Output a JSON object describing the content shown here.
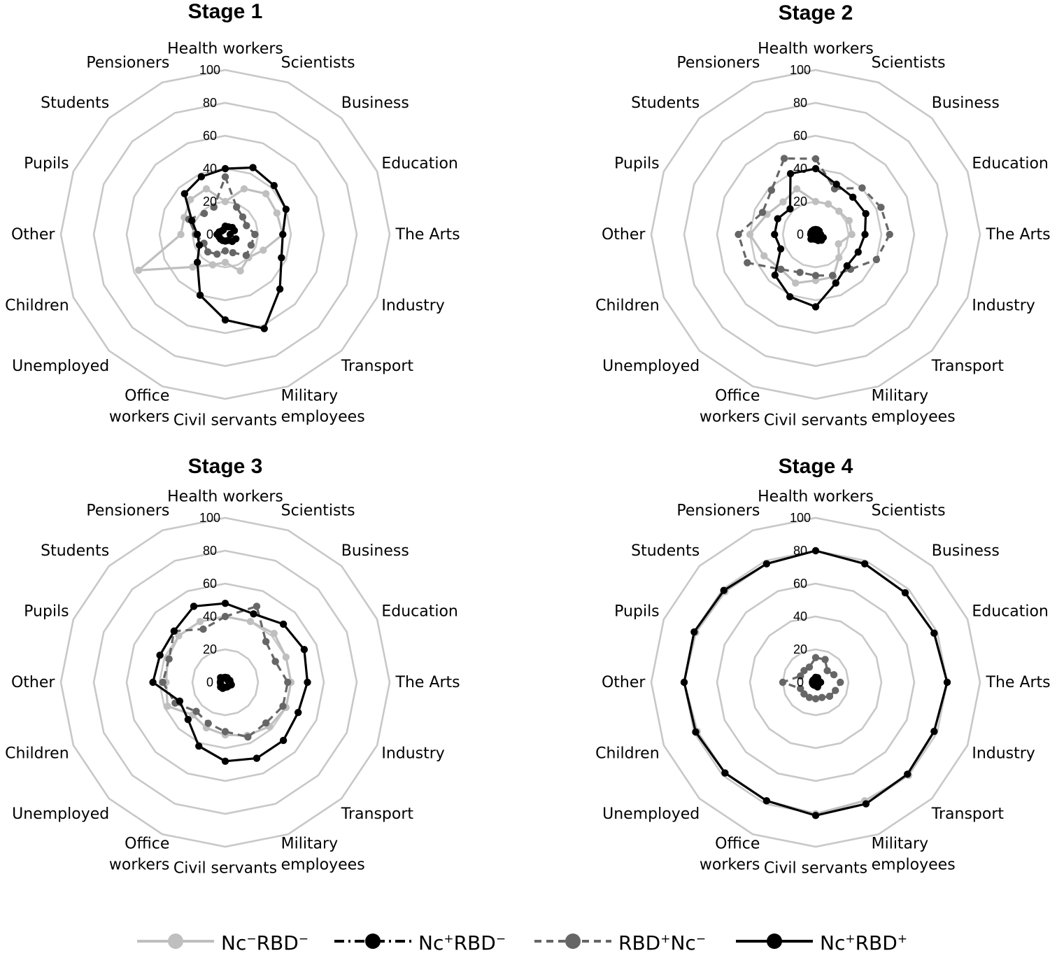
{
  "chart_data": {
    "type": "radar",
    "categories": [
      "Health workers",
      "Scientists",
      "Business",
      "Education",
      "The Arts",
      "Industry",
      "Transport",
      "Military employees",
      "Civil servants",
      "Office workers",
      "Unemployed",
      "Children",
      "Other",
      "Pupils",
      "Students",
      "Pensioners"
    ],
    "category_label_lines": [
      [
        "Health workers"
      ],
      [
        "Scientists"
      ],
      [
        "Business"
      ],
      [
        "Education"
      ],
      [
        "The Arts"
      ],
      [
        "Industry"
      ],
      [
        "Transport"
      ],
      [
        "Military",
        "employees"
      ],
      [
        "Civil servants"
      ],
      [
        "Office",
        "workers"
      ],
      [
        "Unemployed"
      ],
      [
        "Children"
      ],
      [
        "Other"
      ],
      [
        "Pupils"
      ],
      [
        "Students"
      ],
      [
        "Pensioners"
      ]
    ],
    "radial_ticks": [
      "0",
      "20",
      "40",
      "60",
      "80",
      "100"
    ],
    "rlim": [
      0,
      100
    ],
    "legend_position": "bottom",
    "series_styles": [
      {
        "key": "ncneg_rbdneg",
        "color": "#bfbfbf",
        "dash": "solid"
      },
      {
        "key": "ncpos_rbdneg",
        "color": "#000000",
        "dash": "dashdot"
      },
      {
        "key": "rbdpos_ncneg",
        "color": "#666666",
        "dash": "dashed"
      },
      {
        "key": "ncpos_rbdpos",
        "color": "#000000",
        "dash": "solid"
      }
    ],
    "legend": [
      {
        "main1": "Nc",
        "sup1": "−",
        "main2": "RBD",
        "sup2": "−"
      },
      {
        "main1": "Nc",
        "sup1": "+",
        "main2": "RBD",
        "sup2": "−"
      },
      {
        "main1": "RBD",
        "sup1": "+",
        "main2": "Nc",
        "sup2": "−"
      },
      {
        "main1": "Nc",
        "sup1": "+",
        "main2": "RBD",
        "sup2": "+"
      }
    ],
    "panels": [
      {
        "title": "Stage 1",
        "series": [
          {
            "values": [
              20,
              30,
              35,
              34,
              35,
              25,
              20,
              24,
              17,
              20,
              28,
              57,
              27,
              27,
              30,
              30
            ]
          },
          {
            "values": [
              5,
              5,
              6,
              6,
              3,
              7,
              6,
              4,
              4,
              4,
              4,
              4,
              5,
              4,
              3,
              3
            ]
          },
          {
            "values": [
              35,
              18,
              15,
              14,
              18,
              17,
              18,
              12,
              10,
              13,
              15,
              14,
              18,
              24,
              18,
              18
            ]
          },
          {
            "values": [
              40,
              44,
              42,
              40,
              35,
              37,
              47,
              62,
              52,
              40,
              24,
              17,
              17,
              22,
              35,
              38
            ]
          }
        ]
      },
      {
        "title": "Stage 2",
        "series": [
          {
            "values": [
              20,
              20,
              20,
              22,
              22,
              15,
              20,
              28,
              28,
              32,
              30,
              34,
              40,
              32,
              28,
              30
            ]
          },
          {
            "values": [
              3,
              3,
              3,
              2,
              3,
              5,
              5,
              4,
              3,
              3,
              4,
              2,
              3,
              3,
              3,
              3
            ]
          },
          {
            "values": [
              46,
              30,
              40,
              43,
              45,
              40,
              30,
              27,
              25,
              25,
              30,
              45,
              47,
              35,
              38,
              50
            ]
          },
          {
            "values": [
              40,
              33,
              32,
              33,
              30,
              28,
              27,
              32,
              44,
              41,
              35,
              23,
              25,
              25,
              22,
              40
            ]
          }
        ]
      },
      {
        "title": "Stage 3",
        "series": [
          {
            "values": [
              40,
              40,
              42,
              40,
              40,
              40,
              38,
              35,
              32,
              30,
              28,
              38,
              36,
              38,
              40,
              40
            ]
          },
          {
            "values": [
              3,
              3,
              2,
              3,
              3,
              4,
              3,
              3,
              3,
              4,
              4,
              3,
              3,
              3,
              4,
              3
            ]
          },
          {
            "values": [
              40,
              50,
              35,
              33,
              38,
              38,
              35,
              36,
              30,
              27,
              25,
              33,
              38,
              37,
              44,
              35
            ]
          },
          {
            "values": [
              48,
              45,
              50,
              52,
              50,
              48,
              50,
              50,
              48,
              42,
              32,
              30,
              44,
              43,
              44,
              50
            ]
          }
        ]
      },
      {
        "title": "Stage 4",
        "series": [
          {
            "values": [
              80,
              78,
              77,
              78,
              80,
              78,
              80,
              78,
              80,
              78,
              78,
              78,
              80,
              79,
              78,
              78
            ]
          },
          {
            "values": [
              3,
              3,
              2,
              2,
              3,
              2,
              2,
              3,
              2,
              2,
              2,
              2,
              2,
              2,
              2,
              2
            ]
          },
          {
            "values": [
              15,
              15,
              10,
              12,
              15,
              13,
              12,
              10,
              10,
              10,
              10,
              10,
              20,
              10,
              10,
              10
            ]
          },
          {
            "values": [
              80,
              78,
              77,
              78,
              80,
              78,
              79,
              80,
              81,
              78,
              78,
              79,
              80,
              80,
              79,
              78
            ]
          }
        ]
      }
    ]
  }
}
